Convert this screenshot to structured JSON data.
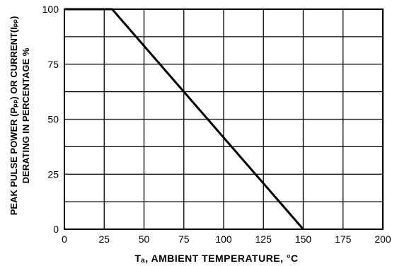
{
  "chart_data": {
    "type": "line",
    "title": "",
    "xlabel": "Tₐ, AMBIENT   TEMPERATURE, °C",
    "ylabel_lines": [
      "PEAK PULSE POWER (Pₚₚ) OR CURRENT(Iₚₚ)",
      "DERATING  IN  PERCENTAGE %"
    ],
    "xlim": [
      0,
      200
    ],
    "ylim": [
      0,
      100
    ],
    "xticks": [
      0,
      25,
      50,
      75,
      100,
      125,
      150,
      175,
      200
    ],
    "yticks": [
      0,
      25,
      50,
      75,
      100
    ],
    "grid": true,
    "series": [
      {
        "x": [
          0,
          30,
          150
        ],
        "y": [
          100,
          100,
          0
        ]
      }
    ]
  }
}
